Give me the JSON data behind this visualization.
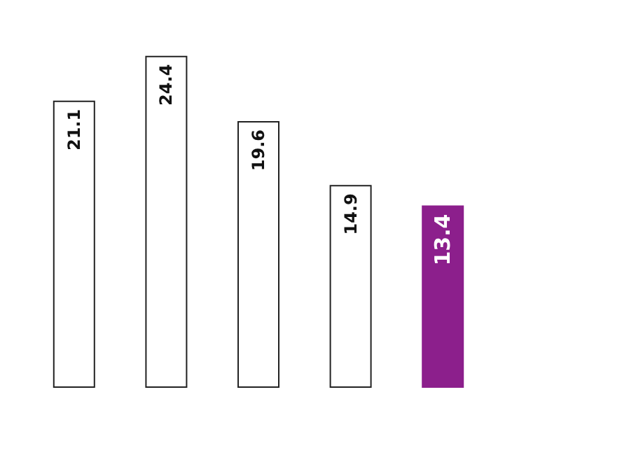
{
  "chart_data": {
    "type": "bar",
    "categories": [
      null,
      null,
      null,
      null,
      null
    ],
    "values": [
      21.1,
      24.4,
      19.6,
      14.9,
      13.4
    ],
    "colors": [
      "#ffffff",
      "#ffffff",
      "#ffffff",
      "#ffffff",
      "#8c1f8c"
    ],
    "data_labels": true,
    "grid": false
  }
}
